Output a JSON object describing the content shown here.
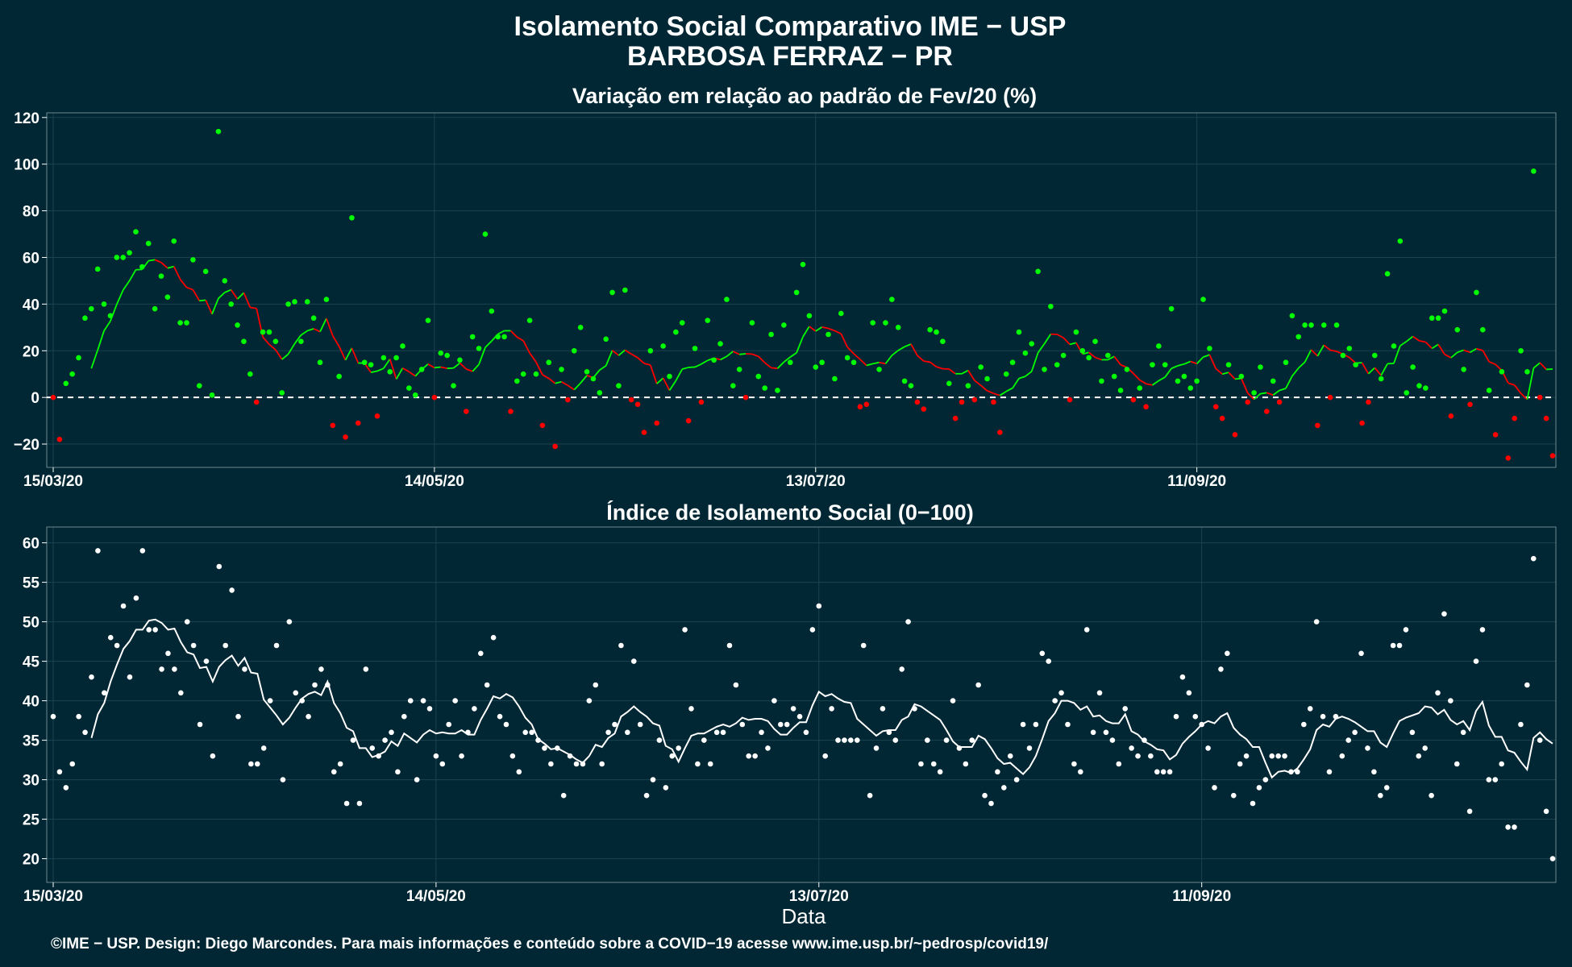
{
  "title_line1": "Isolamento Social Comparativo IME − USP",
  "title_line2": "BARBOSA FERRAZ − PR",
  "xlabel": "Data",
  "caption": "©IME − USP. Design: Diego Marcondes. Para mais informações e conteúdo sobre a COVID−19 acesse www.ime.usp.br/~pedrosp/covid19/",
  "colors": {
    "background": "#002733",
    "positive": "#00ff00",
    "negative": "#ff0000",
    "index": "#ffffff",
    "zero_line": "#ffffff",
    "grid": "#1a4450"
  },
  "chart_data": [
    {
      "type": "scatter",
      "title": "Variação em relação ao padrão de Fev/20 (%)",
      "x_start": "15/03/20",
      "x_ticks": [
        "15/03/20",
        "14/05/20",
        "13/07/20",
        "11/09/20"
      ],
      "x_tick_days": [
        0,
        60,
        120,
        180
      ],
      "ylim": [
        -30,
        122
      ],
      "y_ticks": [
        -20,
        0,
        20,
        40,
        60,
        80,
        100,
        120
      ],
      "y_tick_labels": [
        "−20",
        "0",
        "20",
        "40",
        "60",
        "80",
        "100",
        "120"
      ],
      "reference_line": 0,
      "smooth_window": 7,
      "values": [
        0,
        -18,
        6,
        10,
        17,
        34,
        38,
        55,
        40,
        35,
        60,
        60,
        62,
        71,
        56,
        66,
        38,
        52,
        43,
        67,
        32,
        32,
        59,
        5,
        54,
        1,
        114,
        50,
        40,
        31,
        24,
        10,
        -2,
        28,
        28,
        24,
        2,
        40,
        41,
        24,
        41,
        34,
        15,
        42,
        -12,
        9,
        -17,
        77,
        -11,
        15,
        14,
        -8,
        17,
        11,
        17,
        22,
        4,
        1,
        12,
        33,
        0,
        19,
        18,
        5,
        16,
        -6,
        26,
        21,
        70,
        37,
        26,
        26,
        -6,
        7,
        10,
        33,
        10,
        -12,
        15,
        -21,
        12,
        -1,
        20,
        30,
        11,
        8,
        2,
        25,
        45,
        5,
        46,
        -1,
        -3,
        -15,
        20,
        -11,
        22,
        9,
        28,
        32,
        -10,
        21,
        -2,
        33,
        16,
        23,
        42,
        5,
        12,
        0,
        32,
        9,
        4,
        27,
        3,
        31,
        15,
        45,
        57,
        35,
        13,
        15,
        27,
        8,
        36,
        17,
        15,
        -4,
        -3,
        32,
        12,
        32,
        42,
        30,
        7,
        5,
        -2,
        -5,
        29,
        28,
        24,
        6,
        -9,
        -2,
        5,
        -1,
        13,
        8,
        -2,
        -15,
        10,
        15,
        28,
        19,
        23,
        54,
        12,
        39,
        14,
        18,
        -1,
        28,
        20,
        17,
        24,
        7,
        18,
        9,
        3,
        12,
        -1,
        4,
        -4,
        14,
        22,
        14,
        38,
        7,
        9,
        4,
        7,
        42,
        21,
        -4,
        -9,
        14,
        -16,
        9,
        -2,
        2,
        13,
        -6,
        7,
        -2,
        15,
        35,
        26,
        31,
        31,
        -12,
        31,
        0,
        31,
        18,
        21,
        14,
        -11,
        -2,
        18,
        8,
        53,
        22,
        67,
        2,
        13,
        5,
        4,
        34,
        34,
        37,
        -8,
        29,
        12,
        -3,
        45,
        29,
        3,
        -16,
        11,
        -26,
        -9,
        20,
        11,
        97,
        0,
        -9,
        -25
      ]
    },
    {
      "type": "scatter",
      "title": "Índice de Isolamento Social (0−100)",
      "x_start": "15/03/20",
      "x_ticks": [
        "15/03/20",
        "14/05/20",
        "13/07/20",
        "11/09/20"
      ],
      "x_tick_days": [
        0,
        60,
        120,
        180
      ],
      "ylim": [
        17,
        62
      ],
      "y_ticks": [
        20,
        25,
        30,
        35,
        40,
        45,
        50,
        55,
        60
      ],
      "smooth_window": 7,
      "values": [
        38,
        31,
        29,
        32,
        38,
        36,
        43,
        59,
        41,
        48,
        47,
        52,
        43,
        53,
        59,
        49,
        49,
        44,
        46,
        44,
        41,
        50,
        47,
        37,
        45,
        33,
        57,
        47,
        54,
        38,
        44,
        32,
        32,
        34,
        40,
        47,
        30,
        50,
        41,
        40,
        38,
        42,
        44,
        42,
        31,
        32,
        27,
        35,
        27,
        44,
        34,
        33,
        35,
        36,
        31,
        38,
        40,
        30,
        40,
        39,
        33,
        32,
        37,
        40,
        33,
        36,
        39,
        46,
        42,
        48,
        38,
        37,
        33,
        31,
        36,
        36,
        35,
        34,
        32,
        34,
        28,
        33,
        32,
        32,
        40,
        42,
        32,
        36,
        37,
        47,
        36,
        45,
        37,
        28,
        30,
        35,
        29,
        33,
        34,
        49,
        39,
        32,
        35,
        32,
        36,
        36,
        47,
        42,
        37,
        33,
        33,
        36,
        34,
        40,
        37,
        37,
        39,
        38,
        36,
        49,
        52,
        33,
        39,
        35,
        35,
        35,
        35,
        47,
        28,
        34,
        39,
        36,
        35,
        44,
        50,
        39,
        32,
        35,
        32,
        31,
        35,
        40,
        34,
        32,
        35,
        42,
        28,
        27,
        31,
        29,
        33,
        30,
        37,
        34,
        37,
        46,
        45,
        40,
        41,
        37,
        32,
        31,
        49,
        36,
        41,
        36,
        35,
        32,
        39,
        34,
        33,
        35,
        33,
        31,
        31,
        31,
        38,
        43,
        41,
        38,
        37,
        34,
        29,
        44,
        46,
        28,
        32,
        33,
        27,
        29,
        30,
        33,
        33,
        33,
        31,
        31,
        37,
        39,
        50,
        38,
        31,
        38,
        33,
        35,
        36,
        46,
        34,
        31,
        28,
        29,
        47,
        47,
        49,
        36,
        33,
        34,
        28,
        41,
        51,
        40,
        32,
        36,
        26,
        45,
        49,
        30,
        30,
        32,
        24,
        24,
        37,
        42,
        58,
        35,
        26,
        20
      ]
    }
  ]
}
